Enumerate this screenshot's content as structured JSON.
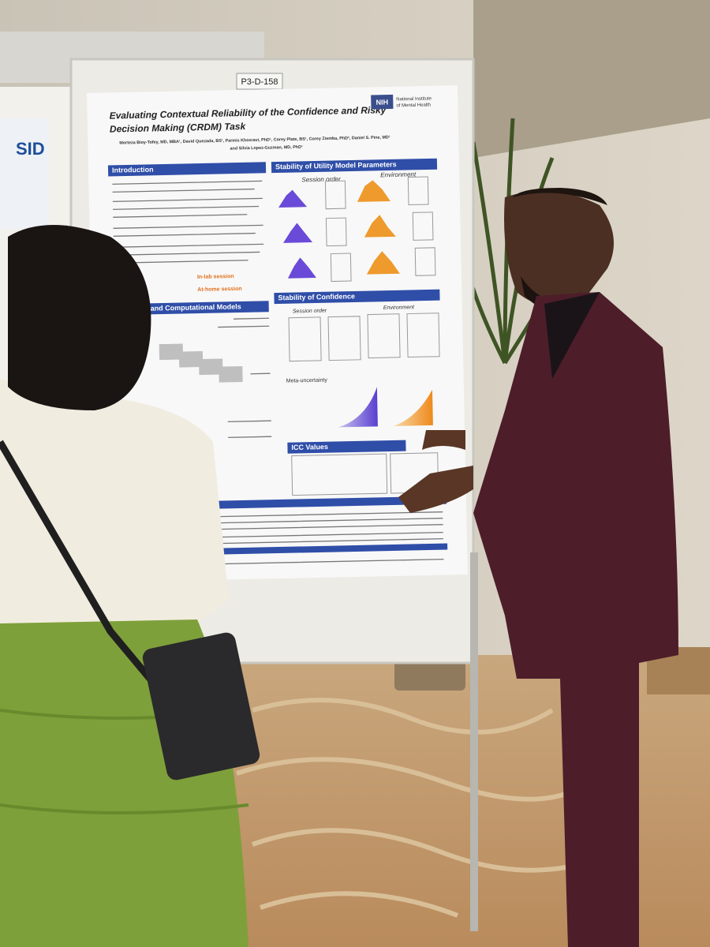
{
  "sign": "P3-D-158",
  "left_poster": {
    "logo": "SID"
  },
  "poster": {
    "title_line1": "Evaluating Contextual Reliability of the Confidence and Risky",
    "title_line2": "Decision Making (CRDM) Task",
    "authors_line1": "Morteza Bioy-Tofey, MD, MBA¹, David Quezada, BS¹, Parmis Khosravi, PhD¹, Corey Plate, BS¹, Corey Ziemba, PhD², Daniel S. Pine, MD¹",
    "authors_line2": "and Silvia Lopez-Guzman, MD, PhD¹",
    "logo": "NIH",
    "institute_line1": "National Institute",
    "institute_line2": "of Mental Health",
    "sections": [
      "Introduction",
      "Stability of Utility Model Parameters",
      "and Computational Models",
      "Stability of Confidence",
      "ICC Values"
    ],
    "labels": [
      "Session order",
      "Environment",
      "Session order",
      "Environment",
      "Meta-uncertainty",
      "In-lab session",
      "At-home session"
    ]
  }
}
